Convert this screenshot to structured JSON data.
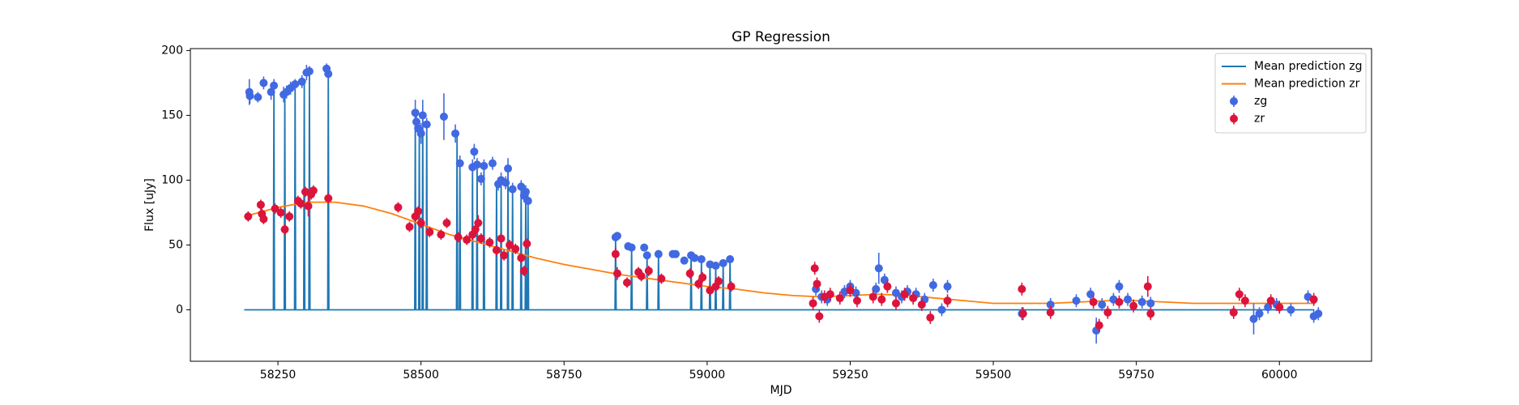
{
  "chart_data": {
    "type": "errorbar-line",
    "title": "GP Regression",
    "xlabel": "MJD",
    "ylabel": "Flux [uJy]",
    "xlim": [
      58097,
      60161
    ],
    "ylim": [
      -39.7,
      201.5
    ],
    "xticks": [
      58250,
      58500,
      58750,
      59000,
      59250,
      59500,
      59750,
      60000
    ],
    "yticks": [
      0,
      50,
      100,
      150,
      200
    ],
    "legend": "upper right",
    "series": [
      {
        "name": "Mean prediction zg",
        "kind": "line",
        "color": "#1f77b4",
        "x": [
          58191,
          58242,
          58243,
          58244,
          58261,
          58262,
          58263,
          58279,
          58280,
          58281,
          58295,
          58296,
          58297,
          58304,
          58305,
          58306,
          58337,
          58338,
          58339,
          58489,
          58490,
          58491,
          58496,
          58497,
          58498,
          58502,
          58503,
          58504,
          58509,
          58510,
          58511,
          58562,
          58563,
          58564,
          58567,
          58568,
          58569,
          58589,
          58590,
          58591,
          58597,
          58598,
          58599,
          58609,
          58610,
          58611,
          58631,
          58632,
          58633,
          58639,
          58640,
          58641,
          58651,
          58652,
          58653,
          58659,
          58660,
          58661,
          58674,
          58675,
          58676,
          58682,
          58683,
          58684,
          58686,
          58687,
          58688,
          58839,
          58840,
          58841,
          58867,
          58868,
          58869,
          58894,
          58895,
          58896,
          58914,
          58915,
          58916,
          58971,
          58972,
          58973,
          58989,
          58990,
          58991,
          59004,
          59005,
          59006,
          59014,
          59015,
          59016,
          59027,
          59028,
          59029,
          59039,
          59040,
          59041,
          60061
        ],
        "values": [
          0,
          0,
          173,
          0,
          0,
          168,
          0,
          0,
          174,
          0,
          0,
          176,
          0,
          0,
          184,
          0,
          0,
          182,
          0,
          0,
          150,
          0,
          0,
          140,
          0,
          0,
          150,
          0,
          0,
          143,
          0,
          0,
          136,
          0,
          0,
          113,
          0,
          0,
          110,
          0,
          0,
          112,
          0,
          0,
          111,
          0,
          0,
          97,
          0,
          0,
          100,
          0,
          0,
          109,
          0,
          0,
          93,
          0,
          0,
          95,
          0,
          0,
          91,
          0,
          0,
          84,
          0,
          0,
          56,
          0,
          0,
          48,
          0,
          0,
          42,
          0,
          0,
          43,
          0,
          0,
          42,
          0,
          0,
          39,
          0,
          0,
          35,
          0,
          0,
          34,
          0,
          0,
          36,
          0,
          0,
          39,
          0,
          0
        ]
      },
      {
        "name": "Mean prediction zr",
        "kind": "line",
        "color": "#ff7f0e",
        "x": [
          58200,
          58250,
          58300,
          58350,
          58400,
          58450,
          58500,
          58550,
          58600,
          58650,
          58700,
          58750,
          58800,
          58850,
          58900,
          58950,
          59000,
          59050,
          59100,
          59150,
          59200,
          59250,
          59300,
          59350,
          59400,
          59450,
          59500,
          59550,
          59600,
          59650,
          59700,
          59750,
          59800,
          59850,
          59900,
          59950,
          60000,
          60063
        ],
        "values": [
          73,
          79,
          83,
          83,
          80,
          74,
          66,
          58,
          52,
          46,
          40,
          35,
          31,
          27,
          24,
          21,
          18,
          16,
          13,
          11,
          10,
          11,
          12,
          11,
          9,
          7,
          5,
          5,
          5,
          6,
          7,
          7,
          6,
          5,
          5,
          5,
          5,
          5
        ]
      },
      {
        "name": "zg",
        "kind": "errorbar",
        "color": "#4169e1",
        "x": [
          58200,
          58201,
          58215,
          58225,
          58238,
          58243,
          58260,
          58265,
          58272,
          58280,
          58292,
          58300,
          58305,
          58335,
          58338,
          58490,
          58492,
          58495,
          58500,
          58503,
          58510,
          58540,
          58560,
          58568,
          58590,
          58593,
          58598,
          58605,
          58610,
          58625,
          58635,
          58640,
          58648,
          58652,
          58660,
          58675,
          58680,
          58683,
          58687,
          58840,
          58843,
          58862,
          58868,
          58890,
          58895,
          58915,
          58940,
          58945,
          58960,
          58972,
          58978,
          58990,
          59005,
          59015,
          59028,
          59040,
          59190,
          59200,
          59210,
          59240,
          59250,
          59260,
          59295,
          59300,
          59310,
          59330,
          59340,
          59350,
          59365,
          59380,
          59395,
          59410,
          59420,
          59550,
          59600,
          59645,
          59670,
          59680,
          59690,
          59710,
          59720,
          59735,
          59760,
          59775,
          59920,
          59955,
          59965,
          59980,
          59995,
          60020,
          60050,
          60060,
          60068
        ],
        "values": [
          168,
          165,
          164,
          175,
          168,
          173,
          166,
          168,
          171,
          174,
          176,
          183,
          184,
          186,
          182,
          152,
          145,
          140,
          136,
          150,
          143,
          149,
          136,
          113,
          110,
          122,
          112,
          101,
          111,
          113,
          97,
          100,
          98,
          109,
          93,
          95,
          88,
          91,
          84,
          56,
          57,
          49,
          48,
          48,
          42,
          43,
          43,
          43,
          38,
          42,
          40,
          39,
          35,
          34,
          36,
          39,
          16,
          10,
          8,
          14,
          18,
          13,
          16,
          32,
          23,
          13,
          10,
          14,
          12,
          8,
          19,
          0,
          18,
          -3,
          4,
          7,
          12,
          -16,
          4,
          8,
          18,
          8,
          6,
          5,
          -2,
          -7,
          -3,
          2,
          4,
          0,
          10,
          -5,
          -3
        ],
        "errors": [
          10,
          6,
          4,
          5,
          6,
          5,
          6,
          5,
          5,
          4,
          5,
          6,
          4,
          4,
          5,
          10,
          8,
          6,
          8,
          12,
          5,
          18,
          7,
          6,
          6,
          6,
          5,
          5,
          5,
          5,
          5,
          6,
          5,
          8,
          5,
          5,
          5,
          5,
          5,
          3,
          3,
          3,
          3,
          3,
          3,
          3,
          3,
          3,
          3,
          3,
          3,
          3,
          3,
          3,
          3,
          3,
          5,
          5,
          5,
          5,
          5,
          5,
          5,
          12,
          5,
          5,
          5,
          5,
          5,
          5,
          5,
          5,
          5,
          5,
          5,
          5,
          5,
          10,
          5,
          5,
          5,
          5,
          5,
          5,
          5,
          12,
          5,
          5,
          5,
          5,
          5,
          5,
          5
        ]
      },
      {
        "name": "zr",
        "kind": "errorbar",
        "color": "#dc143c",
        "x": [
          58198,
          58220,
          58222,
          58225,
          58245,
          58255,
          58262,
          58270,
          58285,
          58290,
          58298,
          58303,
          58308,
          58312,
          58338,
          58460,
          58480,
          58490,
          58495,
          58500,
          58515,
          58535,
          58545,
          58565,
          58580,
          58590,
          58595,
          58600,
          58605,
          58620,
          58632,
          58640,
          58645,
          58655,
          58665,
          58675,
          58680,
          58685,
          58840,
          58843,
          58860,
          58880,
          58885,
          58898,
          58920,
          58970,
          58985,
          58992,
          59005,
          59015,
          59020,
          59042,
          59185,
          59188,
          59192,
          59196,
          59205,
          59215,
          59232,
          59250,
          59262,
          59290,
          59305,
          59315,
          59330,
          59345,
          59360,
          59375,
          59390,
          59420,
          59550,
          59552,
          59600,
          59675,
          59685,
          59700,
          59720,
          59745,
          59770,
          59775,
          59920,
          59930,
          59940,
          59985,
          60000,
          60060
        ],
        "values": [
          72,
          81,
          74,
          70,
          78,
          75,
          62,
          72,
          84,
          82,
          91,
          80,
          89,
          92,
          86,
          79,
          64,
          72,
          76,
          67,
          60,
          58,
          67,
          56,
          54,
          58,
          62,
          67,
          55,
          52,
          46,
          55,
          42,
          50,
          47,
          40,
          30,
          51,
          43,
          28,
          21,
          29,
          26,
          30,
          24,
          28,
          20,
          25,
          15,
          18,
          22,
          18,
          5,
          32,
          20,
          -5,
          10,
          12,
          9,
          15,
          7,
          10,
          8,
          18,
          5,
          12,
          9,
          4,
          -6,
          7,
          16,
          -3,
          -2,
          6,
          -12,
          -2,
          6,
          3,
          18,
          -3,
          -2,
          12,
          7,
          7,
          2,
          8
        ],
        "errors": [
          4,
          4,
          4,
          4,
          4,
          4,
          4,
          4,
          4,
          4,
          4,
          8,
          4,
          4,
          4,
          4,
          4,
          4,
          4,
          4,
          4,
          4,
          4,
          4,
          4,
          4,
          4,
          6,
          4,
          4,
          4,
          4,
          4,
          4,
          4,
          4,
          4,
          4,
          5,
          5,
          4,
          4,
          4,
          4,
          4,
          4,
          4,
          4,
          4,
          4,
          4,
          4,
          5,
          5,
          5,
          5,
          5,
          5,
          5,
          5,
          5,
          5,
          5,
          5,
          5,
          5,
          5,
          5,
          5,
          5,
          5,
          5,
          5,
          5,
          5,
          5,
          5,
          5,
          8,
          5,
          5,
          5,
          5,
          5,
          5,
          5
        ]
      }
    ]
  }
}
